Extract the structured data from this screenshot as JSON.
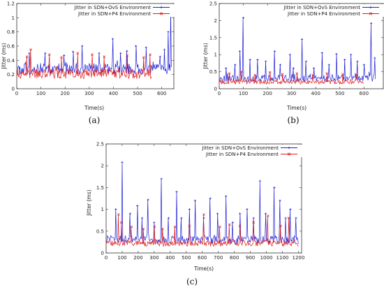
{
  "chart_data": [
    {
      "type": "line",
      "panel_label": "(a)",
      "xlabel": "Time(s)",
      "ylabel": "Jitter (ms)",
      "xlim": [
        0,
        650
      ],
      "ylim": [
        0,
        1.2
      ],
      "xticks": [
        0,
        100,
        200,
        300,
        400,
        500,
        600
      ],
      "yticks": [
        0,
        0.2,
        0.4,
        0.6,
        0.8,
        1,
        1.2
      ],
      "ytick_labels": [
        "0",
        "0.2",
        "0.4",
        "0.6",
        "0.8",
        "1",
        "1.2"
      ],
      "legend_position": "top-right",
      "series": [
        {
          "name": "Jitter in SDN+OvS Environment",
          "color": "#1f1fd6",
          "marker": "plus",
          "duration": 640,
          "baseline": 0.28,
          "spread": 0.08,
          "spikes": [
            [
              52,
              0.5
            ],
            [
              118,
              0.5
            ],
            [
              196,
              0.47
            ],
            [
              233,
              0.52
            ],
            [
              271,
              0.6
            ],
            [
              341,
              0.5
            ],
            [
              397,
              0.7
            ],
            [
              430,
              0.5
            ],
            [
              456,
              0.53
            ],
            [
              493,
              0.6
            ],
            [
              535,
              0.58
            ],
            [
              593,
              0.45
            ],
            [
              611,
              0.55
            ],
            [
              627,
              0.8
            ],
            [
              637,
              1.12
            ]
          ]
        },
        {
          "name": "Jitter in SDN+P4 Environment",
          "color": "#e01818",
          "marker": "x",
          "duration": 560,
          "baseline": 0.21,
          "spread": 0.07,
          "spikes": [
            [
              42,
              0.45
            ],
            [
              58,
              0.55
            ],
            [
              135,
              0.48
            ],
            [
              185,
              0.44
            ],
            [
              252,
              0.5
            ],
            [
              312,
              0.48
            ],
            [
              362,
              0.45
            ],
            [
              457,
              0.47
            ],
            [
              525,
              0.44
            ],
            [
              552,
              0.48
            ]
          ]
        }
      ]
    },
    {
      "type": "line",
      "panel_label": "(b)",
      "xlabel": "Time(s)",
      "ylabel": "Jitter (ms)",
      "xlim": [
        0,
        680
      ],
      "ylim": [
        0,
        2.5
      ],
      "xticks": [
        0,
        100,
        200,
        300,
        400,
        500,
        600
      ],
      "yticks": [
        0,
        0.5,
        1,
        1.5,
        2,
        2.5
      ],
      "ytick_labels": [
        "0",
        "0.5",
        "1",
        "1.5",
        "2",
        "2.5"
      ],
      "legend_position": "top-right",
      "series": [
        {
          "name": "Jitter in SDN+OvS Environment",
          "color": "#1f1fd6",
          "marker": "plus",
          "duration": 650,
          "baseline": 0.3,
          "spread": 0.1,
          "spikes": [
            [
              28,
              0.6
            ],
            [
              66,
              0.7
            ],
            [
              85,
              1.1
            ],
            [
              100,
              2.08
            ],
            [
              128,
              0.85
            ],
            [
              159,
              0.85
            ],
            [
              193,
              0.8
            ],
            [
              230,
              1.1
            ],
            [
              253,
              0.7
            ],
            [
              293,
              1.0
            ],
            [
              308,
              0.6
            ],
            [
              343,
              1.45
            ],
            [
              360,
              0.8
            ],
            [
              392,
              0.6
            ],
            [
              426,
              1.05
            ],
            [
              455,
              0.7
            ],
            [
              486,
              1.02
            ],
            [
              520,
              0.85
            ],
            [
              546,
              1.0
            ],
            [
              573,
              0.8
            ],
            [
              600,
              0.7
            ],
            [
              630,
              1.92
            ],
            [
              645,
              0.9
            ]
          ]
        },
        {
          "name": "Jitter in SDN+P4 Environment",
          "color": "#e01818",
          "marker": "x",
          "duration": 600,
          "baseline": 0.2,
          "spread": 0.07,
          "spikes": [
            [
              42,
              0.45
            ],
            [
              92,
              0.5
            ],
            [
              148,
              0.4
            ],
            [
              210,
              0.48
            ],
            [
              262,
              0.42
            ],
            [
              322,
              0.45
            ],
            [
              388,
              0.4
            ],
            [
              446,
              0.45
            ],
            [
              512,
              0.42
            ],
            [
              570,
              0.4
            ]
          ]
        }
      ]
    },
    {
      "type": "line",
      "panel_label": "(c)",
      "xlabel": "Time(s)",
      "ylabel": "Jitter (ms)",
      "xlim": [
        0,
        1220
      ],
      "ylim": [
        0,
        2.5
      ],
      "xticks": [
        0,
        100,
        200,
        300,
        400,
        500,
        600,
        700,
        800,
        900,
        1000,
        1100,
        1200
      ],
      "yticks": [
        0,
        0.5,
        1,
        1.5,
        2,
        2.5
      ],
      "ytick_labels": [
        "0",
        "0.5",
        "1",
        "1.5",
        "2",
        "2.5"
      ],
      "legend_position": "top-right",
      "series": [
        {
          "name": "Jitter in SDN+OvS Environment",
          "color": "#1f1fd6",
          "marker": "plus",
          "duration": 1200,
          "baseline": 0.3,
          "spread": 0.1,
          "spikes": [
            [
              60,
              1.0
            ],
            [
              100,
              2.08
            ],
            [
              150,
              0.9
            ],
            [
              195,
              1.08
            ],
            [
              225,
              0.8
            ],
            [
              262,
              1.22
            ],
            [
              300,
              0.7
            ],
            [
              345,
              1.7
            ],
            [
              390,
              0.8
            ],
            [
              440,
              1.4
            ],
            [
              470,
              0.8
            ],
            [
              520,
              1.0
            ],
            [
              555,
              1.2
            ],
            [
              610,
              0.8
            ],
            [
              650,
              1.25
            ],
            [
              695,
              0.9
            ],
            [
              748,
              1.3
            ],
            [
              790,
              0.7
            ],
            [
              835,
              0.9
            ],
            [
              880,
              1.0
            ],
            [
              920,
              0.8
            ],
            [
              960,
              1.65
            ],
            [
              995,
              0.9
            ],
            [
              1050,
              1.5
            ],
            [
              1085,
              1.2
            ],
            [
              1120,
              0.8
            ],
            [
              1150,
              1.0
            ],
            [
              1185,
              0.8
            ]
          ]
        },
        {
          "name": "Jitter in SDN+P4 Environment",
          "color": "#e01818",
          "marker": "x",
          "duration": 1200,
          "baseline": 0.22,
          "spread": 0.07,
          "spikes": [
            [
              78,
              0.88
            ],
            [
              95,
              0.7
            ],
            [
              158,
              0.6
            ],
            [
              232,
              0.55
            ],
            [
              302,
              0.6
            ],
            [
              352,
              0.55
            ],
            [
              430,
              0.6
            ],
            [
              520,
              0.62
            ],
            [
              610,
              0.88
            ],
            [
              710,
              0.6
            ],
            [
              770,
              0.65
            ],
            [
              835,
              0.62
            ],
            [
              920,
              0.7
            ],
            [
              1010,
              0.85
            ],
            [
              1090,
              0.62
            ],
            [
              1140,
              0.8
            ]
          ]
        }
      ]
    }
  ]
}
